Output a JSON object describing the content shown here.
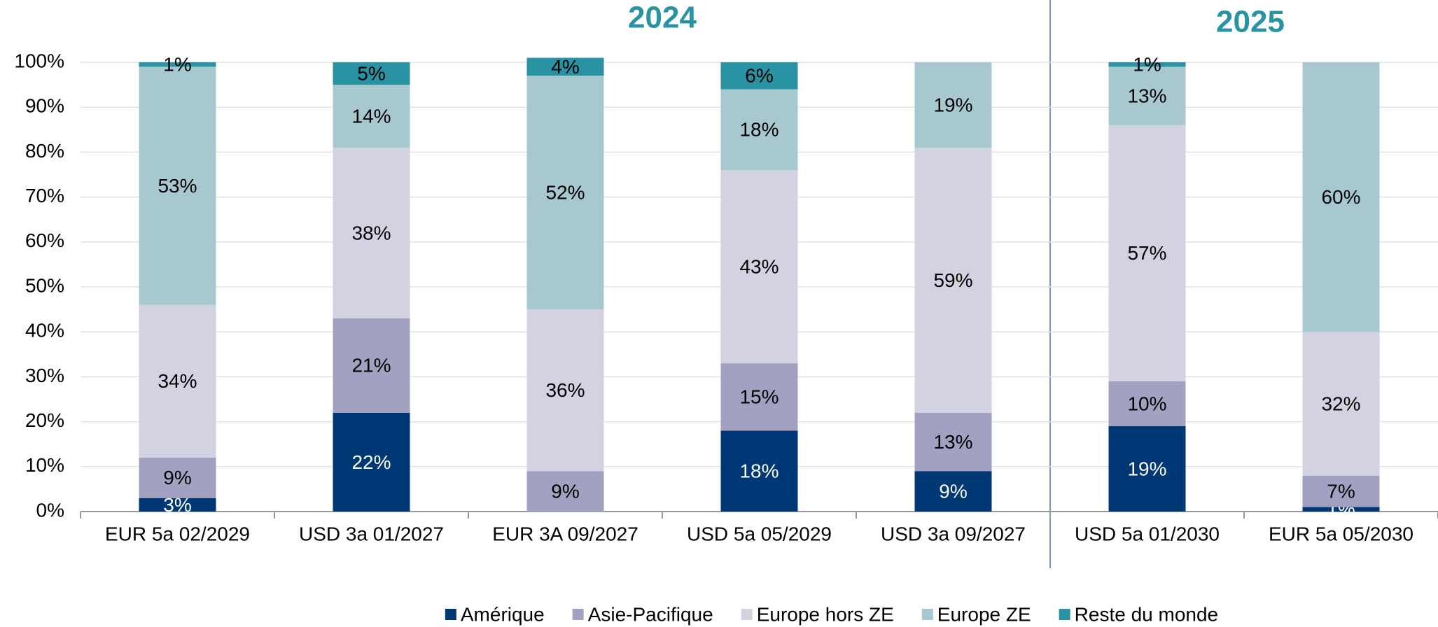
{
  "chart_data": {
    "type": "stacked_bar",
    "annotations": [
      "2024",
      "2025"
    ],
    "categories": [
      "EUR 5a 02/2029",
      "USD 3a 01/2027",
      "EUR 3A 09/2027",
      "USD 5a 05/2029",
      "USD 3a 09/2027",
      "USD 5a 01/2030",
      "EUR 5a 05/2030"
    ],
    "series": [
      {
        "name": "Amérique",
        "color": "#003876",
        "values": [
          3,
          22,
          null,
          18,
          9,
          19,
          1
        ],
        "value_labels": [
          "3%",
          "22%",
          null,
          "18%",
          "9%",
          "19%",
          "1%"
        ]
      },
      {
        "name": "Asie-Pacifique",
        "color": "#a3a1c1",
        "values": [
          9,
          21,
          9,
          15,
          13,
          10,
          7
        ],
        "value_labels": [
          "9%",
          "21%",
          "9%",
          "15%",
          "13%",
          "10%",
          "7%"
        ]
      },
      {
        "name": "Europe hors ZE",
        "color": "#d3d2e0",
        "values": [
          34,
          38,
          36,
          43,
          59,
          57,
          32
        ],
        "value_labels": [
          "34%",
          "38%",
          "36%",
          "43%",
          "59%",
          "57%",
          "32%"
        ]
      },
      {
        "name": "Europe ZE",
        "color": "#a8c8d0",
        "values": [
          53,
          14,
          52,
          18,
          19,
          13,
          60
        ],
        "value_labels": [
          "53%",
          "14%",
          "52%",
          "18%",
          "19%",
          "13%",
          "60%"
        ]
      },
      {
        "name": "Reste du monde",
        "color": "#2a93a3",
        "values": [
          1,
          5,
          4,
          6,
          null,
          1,
          null
        ],
        "value_labels": [
          "1%",
          "5%",
          "4%",
          "6%",
          null,
          "1%",
          null
        ]
      }
    ],
    "ylim": [
      0,
      100
    ],
    "yticks": [
      {
        "value": 0,
        "label": "0%"
      },
      {
        "value": 10,
        "label": "10%"
      },
      {
        "value": 20,
        "label": "20%"
      },
      {
        "value": 30,
        "label": "30%"
      },
      {
        "value": 40,
        "label": "40%"
      },
      {
        "value": 50,
        "label": "50%"
      },
      {
        "value": 60,
        "label": "60%"
      },
      {
        "value": 70,
        "label": "70%"
      },
      {
        "value": 80,
        "label": "80%"
      },
      {
        "value": 90,
        "label": "90%"
      },
      {
        "value": 100,
        "label": "100%"
      }
    ],
    "grid": true,
    "legend": "bottom"
  }
}
